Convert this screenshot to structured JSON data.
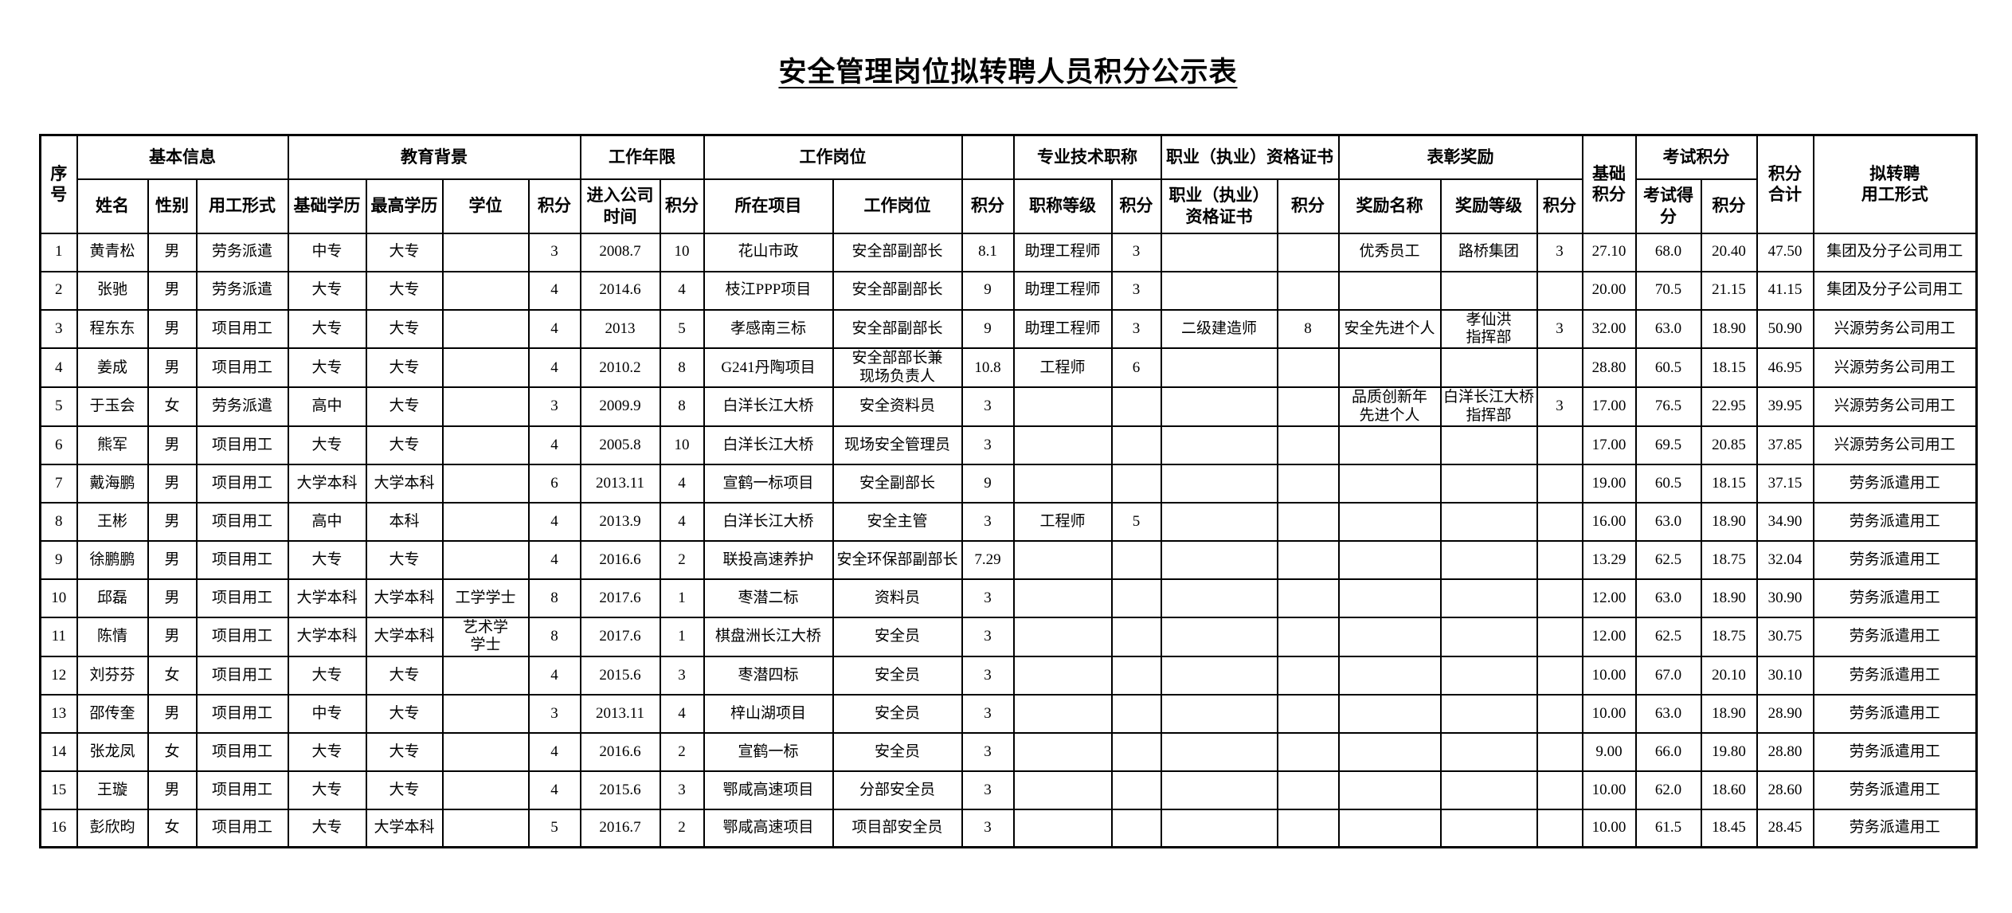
{
  "page": {
    "title": "安全管理岗位拟转聘人员积分公示表"
  },
  "table": {
    "header1": {
      "seq": "序号",
      "basic_info": "基本信息",
      "education": "教育背景",
      "work_years": "工作年限",
      "work_post": "工作岗位",
      "blank": "",
      "pro_title": "专业技术职称",
      "cert": "职业（执业）资格证书",
      "awards": "表彰奖励",
      "base_score": "基础\n积分",
      "exam": "考试积分",
      "total_score": "积分\n合计",
      "proposed_form": "拟转聘\n用工形式"
    },
    "header2": {
      "name": "姓名",
      "gender": "性别",
      "emp_form": "用工形式",
      "base_edu": "基础学历",
      "high_edu": "最高学历",
      "degree": "学位",
      "edu_score": "积分",
      "join_time": "进入公司\n时间",
      "years_score": "积分",
      "project": "所在项目",
      "post": "工作岗位",
      "post_score": "积分",
      "title_level": "职称等级",
      "title_score": "积分",
      "cert_name": "职业（执业）\n资格证书",
      "cert_score": "积分",
      "award_name": "奖励名称",
      "award_level": "奖励等级",
      "award_score": "积分",
      "exam_score": "考试得\n分",
      "exam_points": "积分"
    },
    "rows": [
      [
        "1",
        "黄青松",
        "男",
        "劳务派遣",
        "中专",
        "大专",
        "",
        "3",
        "2008.7",
        "10",
        "花山市政",
        "安全部副部长",
        "8.1",
        "助理工程师",
        "3",
        "",
        "",
        "优秀员工",
        "路桥集团",
        "3",
        "27.10",
        "68.0",
        "20.40",
        "47.50",
        "集团及分子公司用工"
      ],
      [
        "2",
        "张驰",
        "男",
        "劳务派遣",
        "大专",
        "大专",
        "",
        "4",
        "2014.6",
        "4",
        "枝江PPP项目",
        "安全部副部长",
        "9",
        "助理工程师",
        "3",
        "",
        "",
        "",
        "",
        "",
        "20.00",
        "70.5",
        "21.15",
        "41.15",
        "集团及分子公司用工"
      ],
      [
        "3",
        "程东东",
        "男",
        "项目用工",
        "大专",
        "大专",
        "",
        "4",
        "2013",
        "5",
        "孝感南三标",
        "安全部副部长",
        "9",
        "助理工程师",
        "3",
        "二级建造师",
        "8",
        "安全先进个人",
        "孝仙洪\n指挥部",
        "3",
        "32.00",
        "63.0",
        "18.90",
        "50.90",
        "兴源劳务公司用工"
      ],
      [
        "4",
        "姜成",
        "男",
        "项目用工",
        "大专",
        "大专",
        "",
        "4",
        "2010.2",
        "8",
        "G241丹陶项目",
        "安全部部长兼\n现场负责人",
        "10.8",
        "工程师",
        "6",
        "",
        "",
        "",
        "",
        "",
        "28.80",
        "60.5",
        "18.15",
        "46.95",
        "兴源劳务公司用工"
      ],
      [
        "5",
        "于玉会",
        "女",
        "劳务派遣",
        "高中",
        "大专",
        "",
        "3",
        "2009.9",
        "8",
        "白洋长江大桥",
        "安全资料员",
        "3",
        "",
        "",
        "",
        "",
        "品质创新年\n先进个人",
        "白洋长江大桥\n指挥部",
        "3",
        "17.00",
        "76.5",
        "22.95",
        "39.95",
        "兴源劳务公司用工"
      ],
      [
        "6",
        "熊军",
        "男",
        "项目用工",
        "大专",
        "大专",
        "",
        "4",
        "2005.8",
        "10",
        "白洋长江大桥",
        "现场安全管理员",
        "3",
        "",
        "",
        "",
        "",
        "",
        "",
        "",
        "17.00",
        "69.5",
        "20.85",
        "37.85",
        "兴源劳务公司用工"
      ],
      [
        "7",
        "戴海鹏",
        "男",
        "项目用工",
        "大学本科",
        "大学本科",
        "",
        "6",
        "2013.11",
        "4",
        "宣鹤一标项目",
        "安全副部长",
        "9",
        "",
        "",
        "",
        "",
        "",
        "",
        "",
        "19.00",
        "60.5",
        "18.15",
        "37.15",
        "劳务派遣用工"
      ],
      [
        "8",
        "王彬",
        "男",
        "项目用工",
        "高中",
        "本科",
        "",
        "4",
        "2013.9",
        "4",
        "白洋长江大桥",
        "安全主管",
        "3",
        "工程师",
        "5",
        "",
        "",
        "",
        "",
        "",
        "16.00",
        "63.0",
        "18.90",
        "34.90",
        "劳务派遣用工"
      ],
      [
        "9",
        "徐鹏鹏",
        "男",
        "项目用工",
        "大专",
        "大专",
        "",
        "4",
        "2016.6",
        "2",
        "联投高速养护",
        "安全环保部副部长",
        "7.29",
        "",
        "",
        "",
        "",
        "",
        "",
        "",
        "13.29",
        "62.5",
        "18.75",
        "32.04",
        "劳务派遣用工"
      ],
      [
        "10",
        "邱磊",
        "男",
        "项目用工",
        "大学本科",
        "大学本科",
        "工学学士",
        "8",
        "2017.6",
        "1",
        "枣潜二标",
        "资料员",
        "3",
        "",
        "",
        "",
        "",
        "",
        "",
        "",
        "12.00",
        "63.0",
        "18.90",
        "30.90",
        "劳务派遣用工"
      ],
      [
        "11",
        "陈情",
        "男",
        "项目用工",
        "大学本科",
        "大学本科",
        "艺术学\n学士",
        "8",
        "2017.6",
        "1",
        "棋盘洲长江大桥",
        "安全员",
        "3",
        "",
        "",
        "",
        "",
        "",
        "",
        "",
        "12.00",
        "62.5",
        "18.75",
        "30.75",
        "劳务派遣用工"
      ],
      [
        "12",
        "刘芬芬",
        "女",
        "项目用工",
        "大专",
        "大专",
        "",
        "4",
        "2015.6",
        "3",
        "枣潜四标",
        "安全员",
        "3",
        "",
        "",
        "",
        "",
        "",
        "",
        "",
        "10.00",
        "67.0",
        "20.10",
        "30.10",
        "劳务派遣用工"
      ],
      [
        "13",
        "邵传奎",
        "男",
        "项目用工",
        "中专",
        "大专",
        "",
        "3",
        "2013.11",
        "4",
        "梓山湖项目",
        "安全员",
        "3",
        "",
        "",
        "",
        "",
        "",
        "",
        "",
        "10.00",
        "63.0",
        "18.90",
        "28.90",
        "劳务派遣用工"
      ],
      [
        "14",
        "张龙凤",
        "女",
        "项目用工",
        "大专",
        "大专",
        "",
        "4",
        "2016.6",
        "2",
        "宣鹤一标",
        "安全员",
        "3",
        "",
        "",
        "",
        "",
        "",
        "",
        "",
        "9.00",
        "66.0",
        "19.80",
        "28.80",
        "劳务派遣用工"
      ],
      [
        "15",
        "王璇",
        "男",
        "项目用工",
        "大专",
        "大专",
        "",
        "4",
        "2015.6",
        "3",
        "鄂咸高速项目",
        "分部安全员",
        "3",
        "",
        "",
        "",
        "",
        "",
        "",
        "",
        "10.00",
        "62.0",
        "18.60",
        "28.60",
        "劳务派遣用工"
      ],
      [
        "16",
        "彭欣昀",
        "女",
        "项目用工",
        "大专",
        "大学本科",
        "",
        "5",
        "2016.7",
        "2",
        "鄂咸高速项目",
        "项目部安全员",
        "3",
        "",
        "",
        "",
        "",
        "",
        "",
        "",
        "10.00",
        "61.5",
        "18.45",
        "28.45",
        "劳务派遣用工"
      ]
    ]
  }
}
